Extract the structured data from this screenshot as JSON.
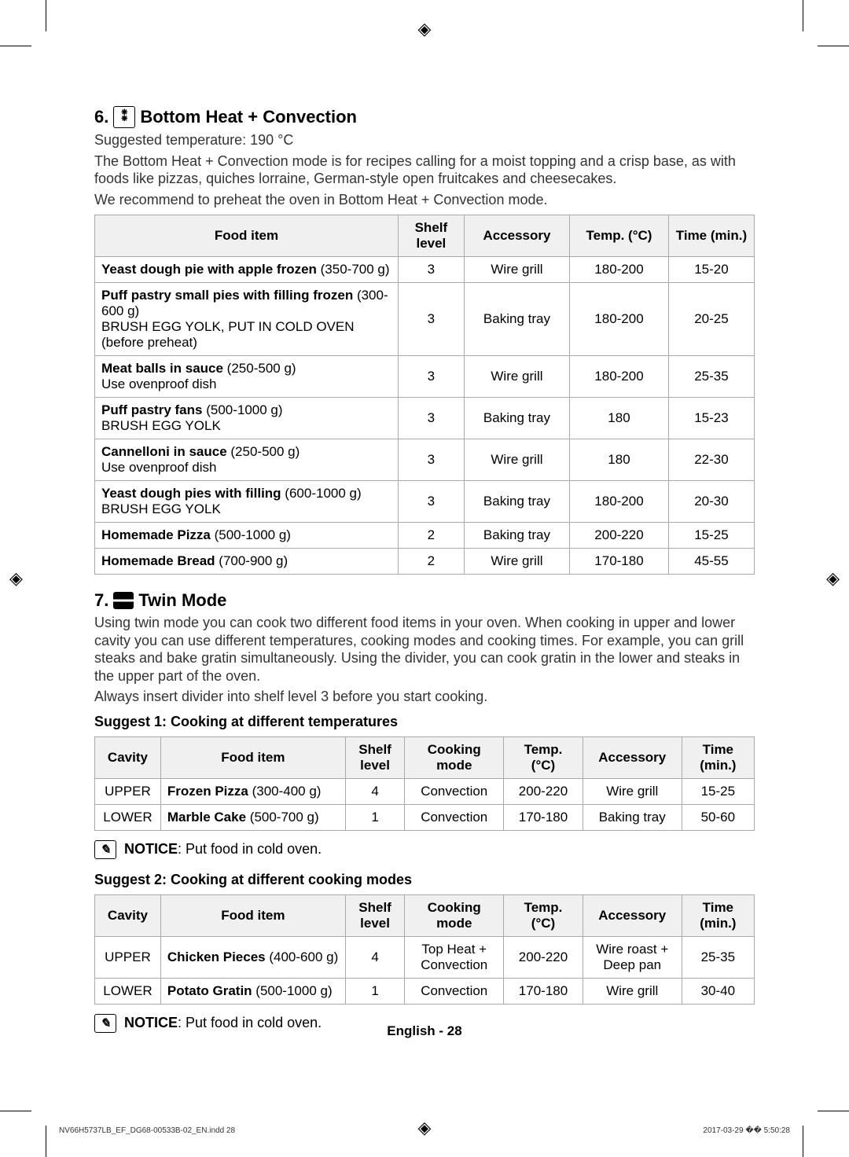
{
  "section6": {
    "number": "6.",
    "title": "Bottom Heat + Convection",
    "suggested": "Suggested temperature: 190 °C",
    "desc1": "The Bottom Heat + Convection mode is for recipes calling for a moist topping and a crisp base, as with foods like pizzas, quiches lorraine, German-style open fruitcakes and cheesecakes.",
    "desc2": "We recommend to preheat the oven in Bottom Heat + Convection mode.",
    "headers": {
      "food": "Food item",
      "shelf": "Shelf level",
      "accessory": "Accessory",
      "temp": "Temp. (°C)",
      "time": "Time (min.)"
    },
    "rows": [
      {
        "name": "Yeast dough pie with apple frozen",
        "qty": " (350-700 g)",
        "note": "",
        "shelf": "3",
        "accessory": "Wire grill",
        "temp": "180-200",
        "time": "15-20"
      },
      {
        "name": "Puff pastry small pies with filling frozen",
        "qty": " (300-600 g)",
        "note": "BRUSH EGG YOLK, PUT IN COLD OVEN (before preheat)",
        "shelf": "3",
        "accessory": "Baking tray",
        "temp": "180-200",
        "time": "20-25"
      },
      {
        "name": "Meat balls in sauce",
        "qty": " (250-500 g)",
        "note": "Use ovenproof dish",
        "shelf": "3",
        "accessory": "Wire grill",
        "temp": "180-200",
        "time": "25-35"
      },
      {
        "name": "Puff pastry fans",
        "qty": " (500-1000 g)",
        "note": "BRUSH EGG YOLK",
        "shelf": "3",
        "accessory": "Baking tray",
        "temp": "180",
        "time": "15-23"
      },
      {
        "name": "Cannelloni in sauce",
        "qty": " (250-500 g)",
        "note": "Use ovenproof dish",
        "shelf": "3",
        "accessory": "Wire grill",
        "temp": "180",
        "time": "22-30"
      },
      {
        "name": "Yeast dough pies with filling",
        "qty": " (600-1000 g)",
        "note": "BRUSH EGG YOLK",
        "shelf": "3",
        "accessory": "Baking tray",
        "temp": "180-200",
        "time": "20-30"
      },
      {
        "name": "Homemade Pizza",
        "qty": " (500-1000 g)",
        "note": "",
        "shelf": "2",
        "accessory": "Baking tray",
        "temp": "200-220",
        "time": "15-25"
      },
      {
        "name": "Homemade Bread",
        "qty": " (700-900 g)",
        "note": "",
        "shelf": "2",
        "accessory": "Wire grill",
        "temp": "170-180",
        "time": "45-55"
      }
    ]
  },
  "section7": {
    "number": "7.",
    "title": "Twin Mode",
    "desc1": "Using twin mode you can cook two different food items in your oven. When cooking in upper and lower cavity you can use different temperatures, cooking modes and cooking times. For example, you can grill steaks and bake gratin simultaneously. Using the divider, you can cook gratin in the lower and steaks in the upper part of the oven.",
    "desc2": "Always insert divider into shelf level 3 before you start cooking.",
    "suggest1": "Suggest 1: Cooking at different temperatures",
    "suggest2": "Suggest 2: Cooking at different cooking modes",
    "headers": {
      "cavity": "Cavity",
      "food": "Food item",
      "shelf": "Shelf level",
      "mode": "Cooking mode",
      "temp": "Temp. (°C)",
      "accessory": "Accessory",
      "time": "Time (min.)"
    },
    "table1": [
      {
        "cavity": "UPPER",
        "name": "Frozen Pizza",
        "qty": " (300-400 g)",
        "shelf": "4",
        "mode": "Convection",
        "temp": "200-220",
        "accessory": "Wire grill",
        "time": "15-25"
      },
      {
        "cavity": "LOWER",
        "name": "Marble Cake",
        "qty": " (500-700 g)",
        "shelf": "1",
        "mode": "Convection",
        "temp": "170-180",
        "accessory": "Baking tray",
        "time": "50-60"
      }
    ],
    "table2": [
      {
        "cavity": "UPPER",
        "name": "Chicken Pieces",
        "qty": " (400-600 g)",
        "shelf": "4",
        "mode": "Top Heat + Convection",
        "temp": "200-220",
        "accessory": "Wire roast + Deep pan",
        "time": "25-35"
      },
      {
        "cavity": "LOWER",
        "name": "Potato Gratin",
        "qty": " (500-1000 g)",
        "shelf": "1",
        "mode": "Convection",
        "temp": "170-180",
        "accessory": "Wire grill",
        "time": "30-40"
      }
    ],
    "notice_label": "NOTICE",
    "notice_text": ": Put food in cold oven."
  },
  "footer": {
    "page": "English - 28",
    "left": "NV66H5737LB_EF_DG68-00533B-02_EN.indd   28",
    "right": "2017-03-29   �� 5:50:28"
  }
}
